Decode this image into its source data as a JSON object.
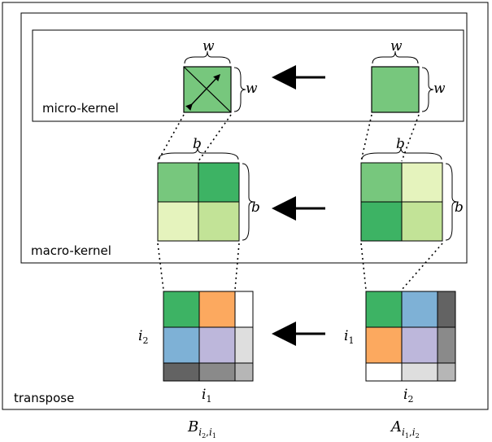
{
  "labels": {
    "micro_kernel": "micro-kernel",
    "macro_kernel": "macro-kernel",
    "transpose": "transpose"
  },
  "micro": {
    "dim_label": "w",
    "color": "#77c77d"
  },
  "macro": {
    "dim_label": "b",
    "left_colors": [
      "#77c77d",
      "#3db364",
      "#e5f3bd",
      "#c2e397"
    ],
    "right_colors": [
      "#77c77d",
      "#e5f3bd",
      "#3db364",
      "#c2e397"
    ]
  },
  "matrix_B": {
    "name": "B",
    "sub": "i",
    "sub2_a": "2",
    "sub_b": "i",
    "sub2_b": "1",
    "row_label_base": "i",
    "row_label_sub": "2",
    "col_label_base": "i",
    "col_label_sub": "1",
    "colors": [
      [
        "#3db364",
        "#fca95f",
        "#ffffff"
      ],
      [
        "#7eb1d6",
        "#bdb7db",
        "#dedede"
      ],
      [
        "#636363",
        "#8a8a8a",
        "#b6b6b6"
      ]
    ]
  },
  "matrix_A": {
    "name": "A",
    "sub": "i",
    "sub2_a": "1",
    "sub_b": "i",
    "sub2_b": "2",
    "row_label_base": "i",
    "row_label_sub": "1",
    "col_label_base": "i",
    "col_label_sub": "2",
    "colors": [
      [
        "#3db364",
        "#7eb1d6",
        "#636363"
      ],
      [
        "#fca95f",
        "#bdb7db",
        "#8a8a8a"
      ],
      [
        "#ffffff",
        "#dedede",
        "#b6b6b6"
      ]
    ]
  }
}
